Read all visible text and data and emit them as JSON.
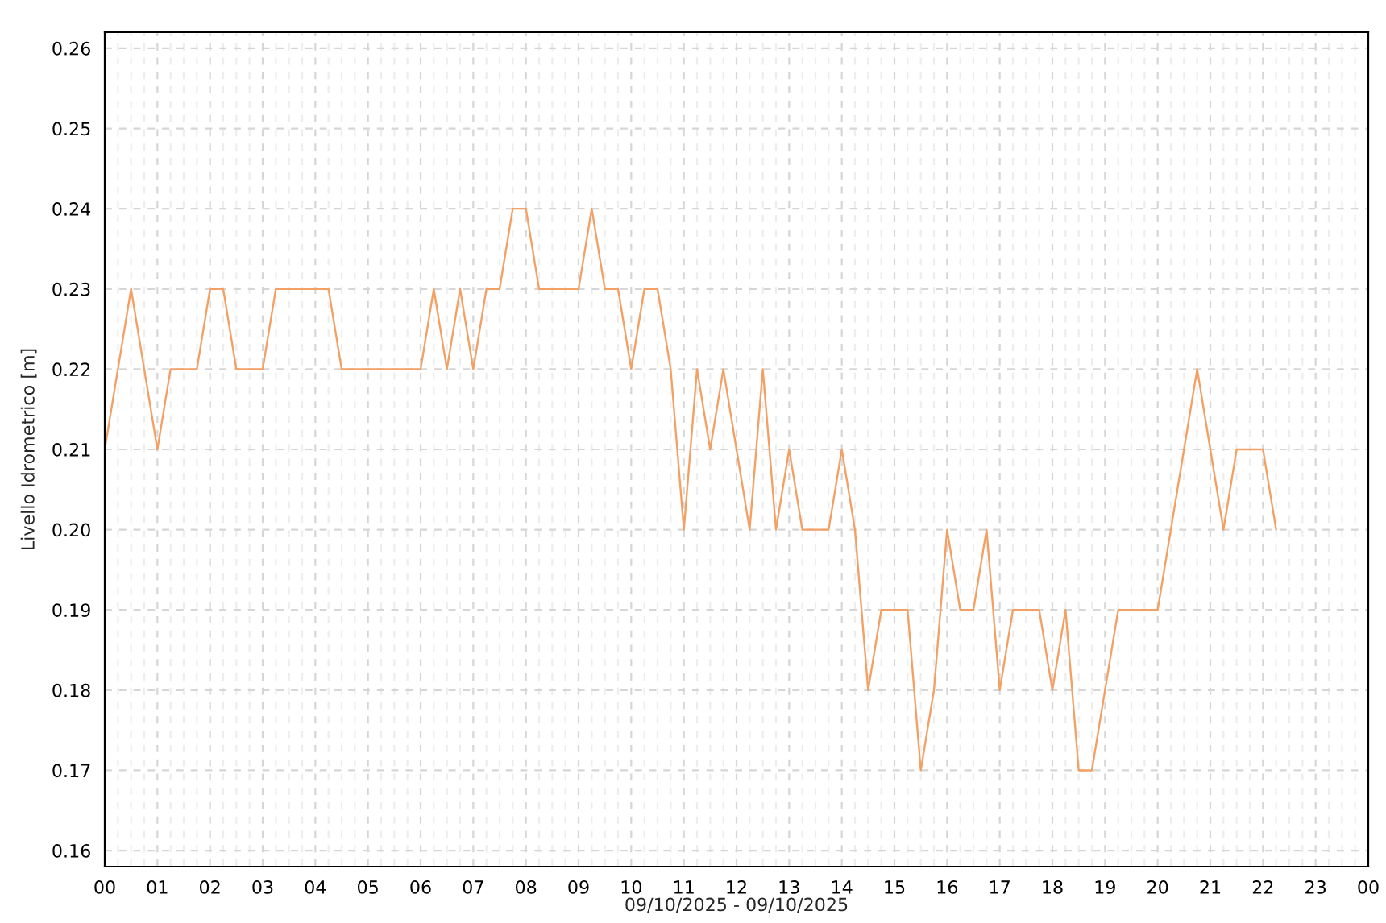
{
  "chart_data": {
    "type": "line",
    "xlabel": "09/10/2025 - 09/10/2025",
    "ylabel": "Livello Idrometrico [m]",
    "x": [
      0,
      0.25,
      0.5,
      0.75,
      1,
      1.25,
      1.5,
      1.75,
      2,
      2.25,
      2.5,
      2.75,
      3,
      3.25,
      3.5,
      3.75,
      4,
      4.25,
      4.5,
      4.75,
      5,
      5.25,
      5.5,
      5.75,
      6,
      6.25,
      6.5,
      6.75,
      7,
      7.25,
      7.5,
      7.75,
      8,
      8.25,
      8.5,
      8.75,
      9,
      9.25,
      9.5,
      9.75,
      10,
      10.25,
      10.5,
      10.75,
      11,
      11.25,
      11.5,
      11.75,
      12,
      12.25,
      12.5,
      12.75,
      13,
      13.25,
      13.5,
      13.75,
      14,
      14.25,
      14.5,
      14.75,
      15,
      15.25,
      15.5,
      15.75,
      16,
      16.25,
      16.5,
      16.75,
      17,
      17.25,
      17.5,
      17.75,
      18,
      18.25,
      18.5,
      18.75,
      19,
      19.25,
      19.5,
      19.75,
      20,
      20.25,
      20.5,
      20.75,
      21,
      21.25,
      21.5,
      21.75,
      22,
      22.25
    ],
    "series": [
      {
        "color": "#f4a064",
        "values": [
          0.21,
          0.22,
          0.23,
          0.22,
          0.21,
          0.22,
          0.22,
          0.22,
          0.23,
          0.23,
          0.22,
          0.22,
          0.22,
          0.23,
          0.23,
          0.23,
          0.23,
          0.23,
          0.22,
          0.22,
          0.22,
          0.22,
          0.22,
          0.22,
          0.22,
          0.23,
          0.22,
          0.23,
          0.22,
          0.23,
          0.23,
          0.24,
          0.24,
          0.23,
          0.23,
          0.23,
          0.23,
          0.24,
          0.23,
          0.23,
          0.22,
          0.23,
          0.23,
          0.22,
          0.2,
          0.22,
          0.21,
          0.22,
          0.21,
          0.2,
          0.22,
          0.2,
          0.21,
          0.2,
          0.2,
          0.2,
          0.21,
          0.2,
          0.18,
          0.19,
          0.19,
          0.19,
          0.17,
          0.18,
          0.2,
          0.19,
          0.19,
          0.2,
          0.18,
          0.19,
          0.19,
          0.19,
          0.18,
          0.19,
          0.17,
          0.17,
          0.18,
          0.19,
          0.19,
          0.19,
          0.19,
          0.2,
          0.21,
          0.22,
          0.21,
          0.2,
          0.21,
          0.21,
          0.21,
          0.2
        ]
      }
    ],
    "xlim": [
      0,
      24
    ],
    "xticks": [
      {
        "value": 0,
        "label": "00"
      },
      {
        "value": 0.25,
        "label": null
      },
      {
        "value": 0.5,
        "label": null
      },
      {
        "value": 0.75,
        "label": null
      },
      {
        "value": 1,
        "label": "01"
      },
      {
        "value": 1.25,
        "label": null
      },
      {
        "value": 1.5,
        "label": null
      },
      {
        "value": 1.75,
        "label": null
      },
      {
        "value": 2,
        "label": "02"
      },
      {
        "value": 2.25,
        "label": null
      },
      {
        "value": 2.5,
        "label": null
      },
      {
        "value": 2.75,
        "label": null
      },
      {
        "value": 3,
        "label": "03"
      },
      {
        "value": 3.25,
        "label": null
      },
      {
        "value": 3.5,
        "label": null
      },
      {
        "value": 3.75,
        "label": null
      },
      {
        "value": 4,
        "label": "04"
      },
      {
        "value": 4.25,
        "label": null
      },
      {
        "value": 4.5,
        "label": null
      },
      {
        "value": 4.75,
        "label": null
      },
      {
        "value": 5,
        "label": "05"
      },
      {
        "value": 5.25,
        "label": null
      },
      {
        "value": 5.5,
        "label": null
      },
      {
        "value": 5.75,
        "label": null
      },
      {
        "value": 6,
        "label": "06"
      },
      {
        "value": 6.25,
        "label": null
      },
      {
        "value": 6.5,
        "label": null
      },
      {
        "value": 6.75,
        "label": null
      },
      {
        "value": 7,
        "label": "07"
      },
      {
        "value": 7.25,
        "label": null
      },
      {
        "value": 7.5,
        "label": null
      },
      {
        "value": 7.75,
        "label": null
      },
      {
        "value": 8,
        "label": "08"
      },
      {
        "value": 8.25,
        "label": null
      },
      {
        "value": 8.5,
        "label": null
      },
      {
        "value": 8.75,
        "label": null
      },
      {
        "value": 9,
        "label": "09"
      },
      {
        "value": 9.25,
        "label": null
      },
      {
        "value": 9.5,
        "label": null
      },
      {
        "value": 9.75,
        "label": null
      },
      {
        "value": 10,
        "label": "10"
      },
      {
        "value": 10.25,
        "label": null
      },
      {
        "value": 10.5,
        "label": null
      },
      {
        "value": 10.75,
        "label": null
      },
      {
        "value": 11,
        "label": "11"
      },
      {
        "value": 11.25,
        "label": null
      },
      {
        "value": 11.5,
        "label": null
      },
      {
        "value": 11.75,
        "label": null
      },
      {
        "value": 12,
        "label": "12"
      },
      {
        "value": 12.25,
        "label": null
      },
      {
        "value": 12.5,
        "label": null
      },
      {
        "value": 12.75,
        "label": null
      },
      {
        "value": 13,
        "label": "13"
      },
      {
        "value": 13.25,
        "label": null
      },
      {
        "value": 13.5,
        "label": null
      },
      {
        "value": 13.75,
        "label": null
      },
      {
        "value": 14,
        "label": "14"
      },
      {
        "value": 14.25,
        "label": null
      },
      {
        "value": 14.5,
        "label": null
      },
      {
        "value": 14.75,
        "label": null
      },
      {
        "value": 15,
        "label": "15"
      },
      {
        "value": 15.25,
        "label": null
      },
      {
        "value": 15.5,
        "label": null
      },
      {
        "value": 15.75,
        "label": null
      },
      {
        "value": 16,
        "label": "16"
      },
      {
        "value": 16.25,
        "label": null
      },
      {
        "value": 16.5,
        "label": null
      },
      {
        "value": 16.75,
        "label": null
      },
      {
        "value": 17,
        "label": "17"
      },
      {
        "value": 17.25,
        "label": null
      },
      {
        "value": 17.5,
        "label": null
      },
      {
        "value": 17.75,
        "label": null
      },
      {
        "value": 18,
        "label": "18"
      },
      {
        "value": 18.25,
        "label": null
      },
      {
        "value": 18.5,
        "label": null
      },
      {
        "value": 18.75,
        "label": null
      },
      {
        "value": 19,
        "label": "19"
      },
      {
        "value": 19.25,
        "label": null
      },
      {
        "value": 19.5,
        "label": null
      },
      {
        "value": 19.75,
        "label": null
      },
      {
        "value": 20,
        "label": "20"
      },
      {
        "value": 20.25,
        "label": null
      },
      {
        "value": 20.5,
        "label": null
      },
      {
        "value": 20.75,
        "label": null
      },
      {
        "value": 21,
        "label": "21"
      },
      {
        "value": 21.25,
        "label": null
      },
      {
        "value": 21.5,
        "label": null
      },
      {
        "value": 21.75,
        "label": null
      },
      {
        "value": 22,
        "label": "22"
      },
      {
        "value": 22.25,
        "label": null
      },
      {
        "value": 22.5,
        "label": null
      },
      {
        "value": 22.75,
        "label": null
      },
      {
        "value": 23,
        "label": "23"
      },
      {
        "value": 23.25,
        "label": null
      },
      {
        "value": 23.5,
        "label": null
      },
      {
        "value": 23.75,
        "label": null
      },
      {
        "value": 24,
        "label": "00"
      }
    ],
    "ylim": [
      0.158,
      0.262
    ],
    "yticks": [
      {
        "value": 0.16,
        "label": "0.16"
      },
      {
        "value": 0.17,
        "label": "0.17"
      },
      {
        "value": 0.18,
        "label": "0.18"
      },
      {
        "value": 0.19,
        "label": "0.19"
      },
      {
        "value": 0.2,
        "label": "0.20"
      },
      {
        "value": 0.21,
        "label": "0.21"
      },
      {
        "value": 0.22,
        "label": "0.22"
      },
      {
        "value": 0.23,
        "label": "0.23"
      },
      {
        "value": 0.24,
        "label": "0.24"
      },
      {
        "value": 0.25,
        "label": "0.25"
      },
      {
        "value": 0.26,
        "label": "0.26"
      }
    ],
    "grid": true,
    "line_style": "solid"
  }
}
